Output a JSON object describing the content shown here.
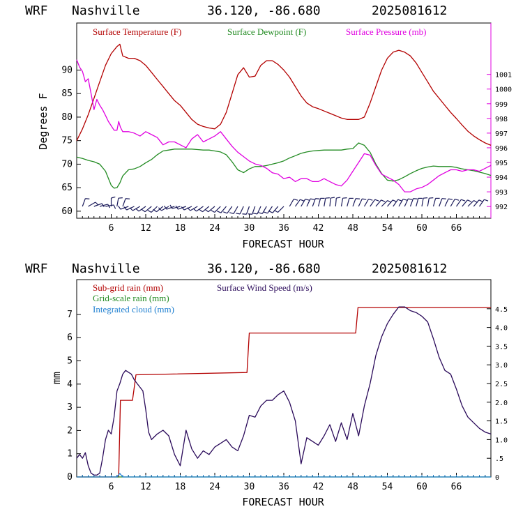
{
  "charts": [
    {
      "header": {
        "model": "WRF",
        "station": "Nashville",
        "coords": "36.120, -86.680",
        "run": "2025081612"
      },
      "xlabel": "FORECAST HOUR",
      "ylabel": "Degrees F",
      "xticks": [
        "6",
        "12",
        "18",
        "24",
        "30",
        "36",
        "42",
        "48",
        "54",
        "60",
        "66"
      ],
      "yticks": [
        "60",
        "65",
        "70",
        "75",
        "80",
        "85",
        "90"
      ],
      "y2ticks": [
        "992",
        "993",
        "994",
        "995",
        "996",
        "997",
        "998",
        "999",
        "1000",
        "1001"
      ],
      "legend": [
        {
          "label": "Surface Temperature (F)",
          "color": "#b30000"
        },
        {
          "label": "Surface Dewpoint (F)",
          "color": "#228b22"
        },
        {
          "label": "Surface Pressure (mb)",
          "color": "#e000e0"
        }
      ]
    },
    {
      "header": {
        "model": "WRF",
        "station": "Nashville",
        "coords": "36.120, -86.680",
        "run": "2025081612"
      },
      "xlabel": "FORECAST HOUR",
      "ylabel": "mm",
      "xticks": [
        "6",
        "12",
        "18",
        "24",
        "30",
        "36",
        "42",
        "48",
        "54",
        "60",
        "66"
      ],
      "yticks": [
        "0",
        "1",
        "2",
        "3",
        "4",
        "5",
        "6",
        "7"
      ],
      "y2ticks": [
        "0",
        ".5",
        "1.0",
        "1.5",
        "2.0",
        "2.5",
        "3.0",
        "3.5",
        "4.0",
        "4.5"
      ],
      "legend": [
        {
          "label": "Sub-grid rain (mm)",
          "color": "#b30000"
        },
        {
          "label": "Surface Wind Speed (m/s)",
          "color": "#2a0a5a"
        },
        {
          "label": "Grid-scale rain (mm)",
          "color": "#228b22"
        },
        {
          "label": "Integrated cloud (mm)",
          "color": "#1e7fd0"
        }
      ]
    }
  ],
  "chart_data": [
    {
      "type": "line",
      "xlim": [
        0,
        72
      ],
      "ylim": [
        58.5,
        100
      ],
      "y2lim": [
        991.2,
        1004.5
      ],
      "series": [
        {
          "name": "Surface Temperature (F)",
          "axis": "left",
          "color": "#b30000",
          "x": [
            0,
            1,
            2,
            3,
            4,
            5,
            6,
            7,
            7.5,
            8,
            9,
            10,
            11,
            12,
            13,
            14,
            15,
            16,
            17,
            18,
            19,
            20,
            21,
            22,
            23,
            24,
            25,
            26,
            27,
            28,
            29,
            30,
            31,
            32,
            33,
            34,
            35,
            36,
            37,
            38,
            39,
            40,
            41,
            42,
            43,
            44,
            45,
            46,
            47,
            48,
            49,
            50,
            51,
            52,
            53,
            54,
            55,
            56,
            57,
            58,
            59,
            60,
            61,
            62,
            63,
            64,
            65,
            66,
            67,
            68,
            69,
            70,
            71,
            72
          ],
          "y": [
            75,
            77.5,
            80.5,
            84,
            87.5,
            91,
            93.5,
            95,
            95.5,
            93,
            92.5,
            92.5,
            92,
            91,
            89.5,
            88,
            86.5,
            85,
            83.5,
            82.5,
            81,
            79.5,
            78.5,
            78,
            77.7,
            77.5,
            78.5,
            81,
            85,
            89,
            90.5,
            88.5,
            88.7,
            91,
            92,
            92,
            91.2,
            90,
            88.5,
            86.5,
            84.5,
            83,
            82.2,
            81.8,
            81.3,
            80.8,
            80.3,
            79.8,
            79.5,
            79.5,
            79.5,
            80,
            83,
            86.5,
            90,
            92.5,
            93.8,
            94.2,
            93.8,
            93,
            91.5,
            89.5,
            87.5,
            85.5,
            84,
            82.5,
            81,
            79.7,
            78.3,
            77,
            76,
            75.2,
            74.5,
            74
          ]
        },
        {
          "name": "Surface Dewpoint (F)",
          "axis": "left",
          "color": "#228b22",
          "x": [
            0,
            1,
            2,
            3,
            4,
            5,
            6,
            6.5,
            7,
            7.5,
            8,
            9,
            10,
            11,
            12,
            13,
            14,
            15,
            16,
            17,
            18,
            19,
            20,
            21,
            22,
            23,
            24,
            25,
            26,
            27,
            28,
            29,
            30,
            31,
            32,
            33,
            34,
            35,
            36,
            37,
            38,
            39,
            40,
            41,
            42,
            43,
            44,
            45,
            46,
            47,
            48,
            49,
            50,
            51,
            52,
            53,
            54,
            55,
            56,
            57,
            58,
            59,
            60,
            61,
            62,
            63,
            64,
            65,
            66,
            67,
            68,
            69,
            70,
            71,
            72
          ],
          "y": [
            71.5,
            71.2,
            70.8,
            70.5,
            70,
            68.5,
            65.5,
            64.9,
            65,
            66,
            67.5,
            68.8,
            69,
            69.5,
            70.3,
            71,
            72,
            72.8,
            73,
            73.2,
            73.2,
            73.2,
            73.2,
            73.1,
            73,
            73,
            72.8,
            72.6,
            72,
            70.5,
            68.8,
            68.2,
            69,
            69.5,
            69.5,
            69.7,
            70,
            70.3,
            70.7,
            71.3,
            71.8,
            72.3,
            72.6,
            72.8,
            72.9,
            73,
            73,
            73,
            73,
            73.2,
            73.3,
            74.5,
            74,
            72.5,
            70,
            68,
            66.6,
            66.4,
            66.7,
            67.3,
            68,
            68.6,
            69.1,
            69.4,
            69.6,
            69.5,
            69.5,
            69.5,
            69.3,
            69,
            68.8,
            68.6,
            68.3,
            68,
            67.6
          ]
        },
        {
          "name": "Surface Pressure (mb)",
          "axis": "right",
          "color": "#e000e0",
          "x": [
            0,
            0.5,
            1,
            1.5,
            2,
            2.5,
            3,
            3.5,
            4,
            4.5,
            5,
            5.5,
            6,
            6.5,
            7,
            7.3,
            7.6,
            8,
            9,
            10,
            11,
            12,
            13,
            14,
            15,
            16,
            17,
            18,
            19,
            20,
            21,
            22,
            23,
            24,
            25,
            26,
            27,
            28,
            29,
            30,
            31,
            32,
            33,
            34,
            35,
            36,
            37,
            38,
            39,
            40,
            41,
            42,
            43,
            44,
            45,
            46,
            47,
            48,
            49,
            50,
            51,
            52,
            53,
            54,
            55,
            56,
            57,
            58,
            59,
            60,
            61,
            62,
            63,
            64,
            65,
            66,
            67,
            68,
            69,
            70,
            71,
            72
          ],
          "y": [
            1002.0,
            1001.5,
            1001.2,
            1000.5,
            1000.7,
            999.7,
            998.6,
            999.3,
            998.9,
            998.6,
            998.2,
            997.8,
            997.5,
            997.2,
            997.2,
            997.8,
            997.4,
            997.1,
            997.1,
            997.0,
            996.8,
            997.1,
            996.9,
            996.7,
            996.2,
            996.4,
            996.4,
            996.2,
            996.0,
            996.6,
            996.9,
            996.4,
            996.6,
            996.8,
            997.1,
            996.6,
            996.1,
            995.7,
            995.4,
            995.1,
            994.9,
            994.8,
            994.6,
            994.3,
            994.2,
            993.9,
            994.0,
            993.7,
            993.9,
            993.9,
            993.7,
            993.7,
            993.9,
            993.7,
            993.5,
            993.4,
            993.8,
            994.4,
            995.0,
            995.6,
            995.5,
            994.8,
            994.2,
            994.0,
            993.8,
            993.5,
            993.0,
            993.0,
            993.2,
            993.3,
            993.5,
            993.8,
            994.1,
            994.3,
            994.5,
            994.5,
            994.4,
            994.5,
            994.5,
            994.4,
            994.6,
            994.8
          ]
        }
      ]
    },
    {
      "type": "line",
      "xlim": [
        0,
        72
      ],
      "ylim": [
        0,
        8.5
      ],
      "y2lim": [
        0,
        5.28
      ],
      "series": [
        {
          "name": "Sub-grid rain (mm)",
          "axis": "left",
          "color": "#b30000",
          "step": true,
          "x": [
            0,
            7.3,
            7.6,
            9.7,
            10.3,
            29.6,
            30,
            48.5,
            48.9,
            72
          ],
          "y": [
            0,
            0,
            3.3,
            3.3,
            4.4,
            4.5,
            6.2,
            6.2,
            7.3,
            7.3
          ]
        },
        {
          "name": "Surface Wind Speed (m/s)",
          "axis": "right",
          "color": "#2a0a5a",
          "x": [
            0,
            0.5,
            1,
            1.5,
            2,
            2.5,
            3,
            3.5,
            4,
            4.5,
            5,
            5.5,
            6,
            6.5,
            7,
            7.5,
            8,
            8.5,
            9,
            9.5,
            10,
            10.5,
            11,
            11.5,
            12,
            12.5,
            13,
            14,
            15,
            16,
            17,
            18,
            19,
            20,
            21,
            22,
            23,
            24,
            25,
            26,
            27,
            28,
            29,
            30,
            31,
            32,
            33,
            34,
            35,
            36,
            37,
            38,
            39,
            40,
            41,
            42,
            43,
            44,
            45,
            46,
            47,
            48,
            49,
            50,
            51,
            52,
            53,
            54,
            55,
            56,
            57,
            58,
            59,
            60,
            61,
            62,
            63,
            64,
            65,
            66,
            67,
            68,
            69,
            70,
            71,
            72
          ],
          "y": [
            0.5,
            0.6,
            0.5,
            0.65,
            0.3,
            0.1,
            0.05,
            0.05,
            0.1,
            0.5,
            1.0,
            1.25,
            1.15,
            1.6,
            2.3,
            2.5,
            2.75,
            2.85,
            2.8,
            2.75,
            2.6,
            2.5,
            2.4,
            2.3,
            1.8,
            1.2,
            1.0,
            1.15,
            1.25,
            1.1,
            0.6,
            0.3,
            1.25,
            0.75,
            0.5,
            0.7,
            0.6,
            0.8,
            0.9,
            1.0,
            0.8,
            0.7,
            1.1,
            1.65,
            1.6,
            1.9,
            2.05,
            2.05,
            2.2,
            2.3,
            2.0,
            1.5,
            0.35,
            1.05,
            0.95,
            0.85,
            1.1,
            1.4,
            0.95,
            1.45,
            1.0,
            1.7,
            1.1,
            1.9,
            2.5,
            3.25,
            3.75,
            4.1,
            4.35,
            4.55,
            4.55,
            4.45,
            4.4,
            4.3,
            4.15,
            3.7,
            3.2,
            2.85,
            2.75,
            2.35,
            1.9,
            1.6,
            1.45,
            1.3,
            1.2,
            1.15
          ]
        },
        {
          "name": "Grid-scale rain (mm)",
          "axis": "left",
          "color": "#228b22",
          "x": [
            0,
            72
          ],
          "y": [
            0,
            0
          ]
        },
        {
          "name": "Integrated cloud (mm)",
          "axis": "left",
          "color": "#1e7fd0",
          "x": [
            0,
            7,
            7.5,
            8,
            72
          ],
          "y": [
            0,
            0,
            0.15,
            0,
            0
          ]
        }
      ]
    }
  ]
}
